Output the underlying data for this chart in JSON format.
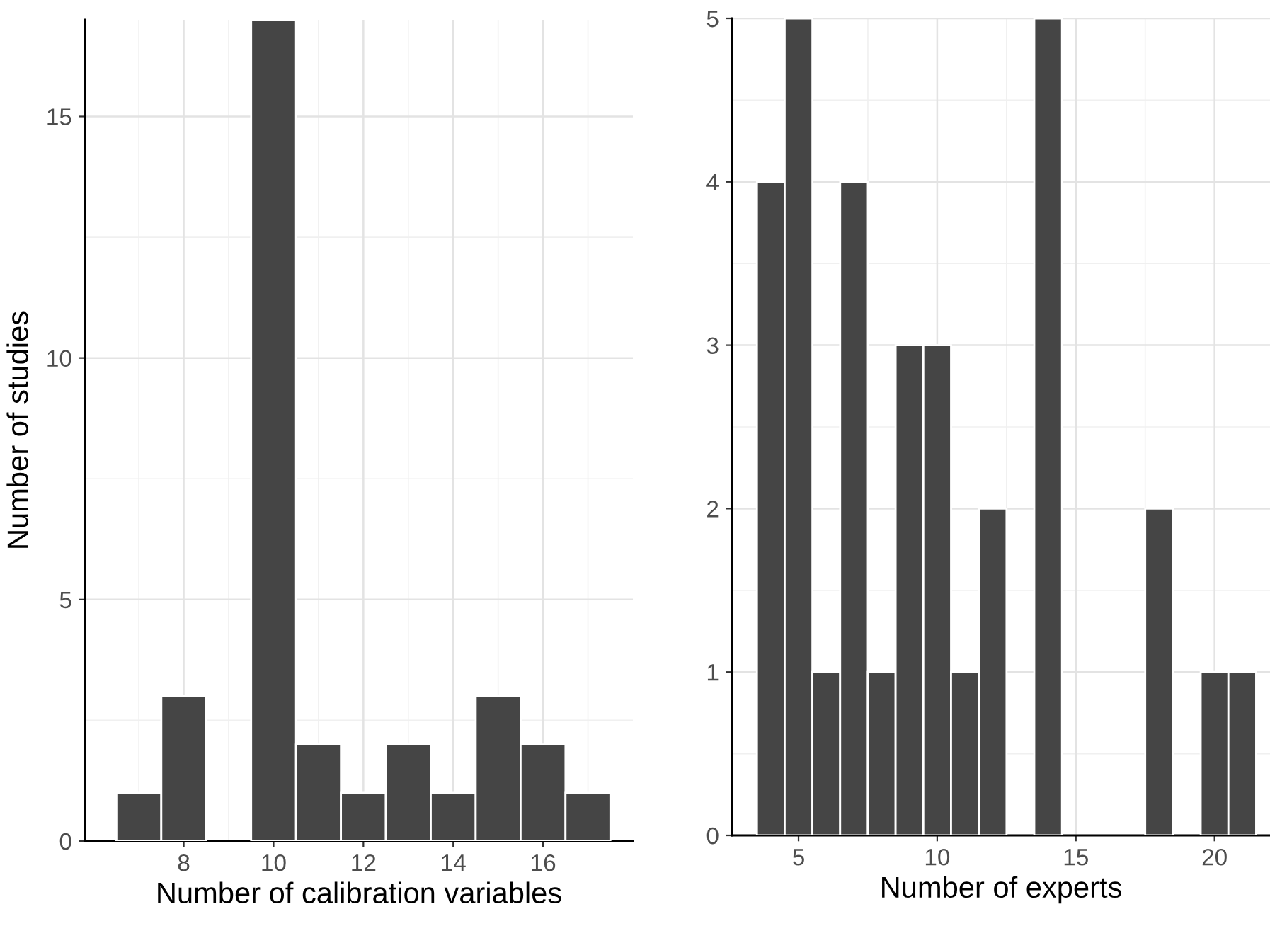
{
  "chart_data": [
    {
      "type": "histogram",
      "xlabel": "Number of calibration variables",
      "ylabel": "Number of studies",
      "color": "#454545",
      "bins": [
        6.5,
        7.5,
        8.5,
        9.5,
        10.5,
        11.5,
        12.5,
        13.5,
        14.5,
        15.5,
        16.5,
        17.5
      ],
      "values": [
        1,
        3,
        0,
        17,
        2,
        1,
        2,
        1,
        3,
        2,
        1
      ],
      "xlim": [
        5.8,
        18.0
      ],
      "xticks": [
        8,
        10,
        12,
        14,
        16
      ],
      "ylim": [
        0,
        17
      ],
      "yticks": [
        0,
        5,
        10,
        15
      ],
      "grid": true
    },
    {
      "type": "histogram",
      "xlabel": "Number of experts",
      "color": "#454545",
      "bins": [
        3.5,
        4.5,
        5.5,
        6.5,
        7.5,
        8.5,
        9.5,
        10.5,
        11.5,
        12.5,
        13.5,
        14.5,
        15.5,
        16.5,
        17.5,
        18.5,
        19.5,
        20.5,
        21.5
      ],
      "values": [
        4,
        5,
        1,
        4,
        1,
        3,
        3,
        1,
        2,
        0,
        5,
        0,
        0,
        0,
        2,
        0,
        1,
        1
      ],
      "xlim": [
        2.6,
        22.0
      ],
      "xticks": [
        5,
        10,
        15,
        20
      ],
      "ylim": [
        0,
        5
      ],
      "yticks": [
        0,
        1,
        2,
        3,
        4,
        5
      ],
      "grid": true
    }
  ]
}
